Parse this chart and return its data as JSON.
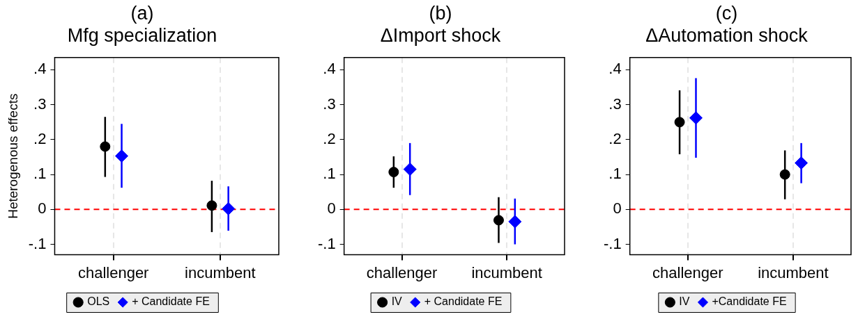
{
  "chart_data": [
    {
      "type": "scatter",
      "title": "(a)",
      "subtitle": "Mfg specialization",
      "ylabel": "Heterogenous effects",
      "categories": [
        "challenger",
        "incumbent"
      ],
      "series": [
        {
          "name": "OLS",
          "color": "#000000",
          "marker": "circle",
          "values": [
            0.18,
            0.011
          ],
          "errors": [
            [
              0.093,
              0.265
            ],
            [
              -0.065,
              0.082
            ]
          ]
        },
        {
          "name": "+ Candidate FE",
          "color": "#0000ff",
          "marker": "diamond",
          "values": [
            0.153,
            0.002
          ],
          "errors": [
            [
              0.062,
              0.245
            ],
            [
              -0.061,
              0.066
            ]
          ]
        }
      ],
      "ylim": [
        -0.13,
        0.435
      ],
      "yticks": [
        {
          "value": -0.1,
          "label": "-.1"
        },
        {
          "value": 0,
          "label": "0"
        },
        {
          "value": 0.1,
          "label": ".1"
        },
        {
          "value": 0.2,
          "label": ".2"
        },
        {
          "value": 0.3,
          "label": ".3"
        },
        {
          "value": 0.4,
          "label": ".4"
        }
      ],
      "grid": "x",
      "legend": "bottom",
      "ref_lines": [
        {
          "axis": "y",
          "value": 0,
          "color": "#ff0000",
          "line_style": "dashed"
        }
      ]
    },
    {
      "type": "scatter",
      "title": "(b)",
      "subtitle": "ΔImport shock",
      "categories": [
        "challenger",
        "incumbent"
      ],
      "series": [
        {
          "name": "IV",
          "color": "#000000",
          "marker": "circle",
          "values": [
            0.107,
            -0.031
          ],
          "errors": [
            [
              0.062,
              0.152
            ],
            [
              -0.096,
              0.035
            ]
          ]
        },
        {
          "name": "+ Candidate FE",
          "color": "#0000ff",
          "marker": "diamond",
          "values": [
            0.115,
            -0.035
          ],
          "errors": [
            [
              0.041,
              0.19
            ],
            [
              -0.1,
              0.031
            ]
          ]
        }
      ],
      "ylim": [
        -0.13,
        0.435
      ],
      "yticks": [
        {
          "value": -0.1,
          "label": "-.1"
        },
        {
          "value": 0,
          "label": "0"
        },
        {
          "value": 0.1,
          "label": ".1"
        },
        {
          "value": 0.2,
          "label": ".2"
        },
        {
          "value": 0.3,
          "label": ".3"
        },
        {
          "value": 0.4,
          "label": ".4"
        }
      ],
      "grid": "x",
      "legend": "bottom",
      "ref_lines": [
        {
          "axis": "y",
          "value": 0,
          "color": "#ff0000",
          "line_style": "dashed"
        }
      ]
    },
    {
      "type": "scatter",
      "title": "(c)",
      "subtitle": "ΔAutomation shock",
      "categories": [
        "challenger",
        "incumbent"
      ],
      "series": [
        {
          "name": "IV",
          "color": "#000000",
          "marker": "circle",
          "values": [
            0.25,
            0.1
          ],
          "errors": [
            [
              0.158,
              0.341
            ],
            [
              0.029,
              0.169
            ]
          ]
        },
        {
          "name": "+Candidate FE",
          "color": "#0000ff",
          "marker": "diamond",
          "values": [
            0.262,
            0.133
          ],
          "errors": [
            [
              0.148,
              0.376
            ],
            [
              0.075,
              0.19
            ]
          ]
        }
      ],
      "ylim": [
        -0.13,
        0.435
      ],
      "yticks": [
        {
          "value": -0.1,
          "label": "-.1"
        },
        {
          "value": 0,
          "label": "0"
        },
        {
          "value": 0.1,
          "label": ".1"
        },
        {
          "value": 0.2,
          "label": ".2"
        },
        {
          "value": 0.3,
          "label": ".3"
        },
        {
          "value": 0.4,
          "label": ".4"
        }
      ],
      "grid": "x",
      "legend": "bottom",
      "ref_lines": [
        {
          "axis": "y",
          "value": 0,
          "color": "#ff0000",
          "line_style": "dashed"
        }
      ]
    }
  ]
}
